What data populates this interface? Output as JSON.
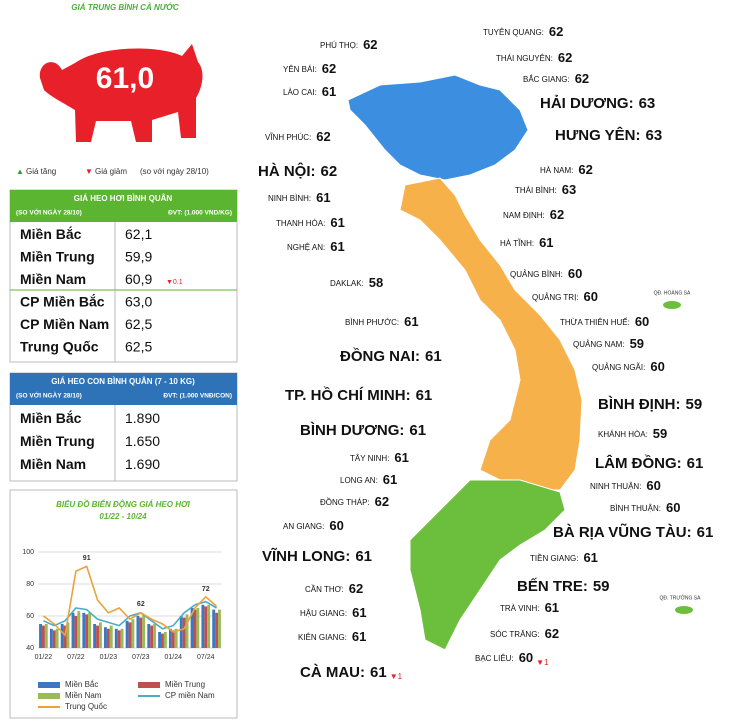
{
  "header": {
    "title": "GIÁ TRUNG BÌNH CẢ NƯỚC",
    "average": "61,0"
  },
  "legend": {
    "up": "Giá tăng",
    "down": "Giá giảm",
    "note": "(so với ngày 28/10)"
  },
  "live_table": {
    "title": "GIÁ HEO HƠI BÌNH QUÂN",
    "since": "(SO VỚI NGÀY 28/10)",
    "unit": "ĐVT: (1.000 VND/KG)",
    "rows": [
      [
        "Miền Bắc",
        "62,1"
      ],
      [
        "Miền Trung",
        "59,9"
      ],
      [
        "Miền Nam",
        "60,9",
        "▼0.1"
      ],
      [
        "CP Miền Bắc",
        "63,0"
      ],
      [
        "CP Miền Nam",
        "62,5"
      ],
      [
        "Trung Quốc",
        "62,5"
      ]
    ]
  },
  "piglet_table": {
    "title": "GIÁ HEO CON BÌNH QUÂN (7 - 10 KG)",
    "since": "(SO VỚI NGÀY 28/10)",
    "unit": "ĐVT: (1.000 VNĐ/CON)",
    "rows": [
      [
        "Miền Bắc",
        "1.890"
      ],
      [
        "Miền Trung",
        "1.650"
      ],
      [
        "Miền Nam",
        "1.690"
      ]
    ]
  },
  "chart_data": {
    "type": "bar-line",
    "title": "BIỂU ĐỒ BIẾN ĐỘNG GIÁ HEO HƠI",
    "subtitle": "01/22 - 10/24",
    "categories": [
      "01/22",
      null,
      null,
      "07/22",
      null,
      null,
      "01/23",
      null,
      null,
      "07/23",
      null,
      null,
      "01/24",
      null,
      null,
      "07/24",
      null
    ],
    "ylim": [
      40,
      100
    ],
    "yticks": [
      40,
      60,
      80,
      100
    ],
    "grid": true,
    "series": [
      {
        "name": "Miền Bắc",
        "color": "#3a78c3",
        "kind": "bar",
        "values": [
          55,
          52,
          55,
          62,
          62,
          55,
          53,
          52,
          57,
          60,
          55,
          50,
          52,
          60,
          65,
          67,
          64
        ]
      },
      {
        "name": "Miền Trung",
        "color": "#c0504d",
        "kind": "bar",
        "values": [
          54,
          51,
          54,
          60,
          61,
          54,
          52,
          51,
          56,
          59,
          54,
          49,
          51,
          59,
          64,
          66,
          62
        ]
      },
      {
        "name": "Miền Nam",
        "color": "#9bbb59",
        "kind": "bar",
        "values": [
          55,
          52,
          56,
          63,
          62,
          56,
          54,
          52,
          58,
          61,
          55,
          50,
          52,
          61,
          65,
          67,
          64
        ]
      },
      {
        "name": "CP miền Nam",
        "color": "#4bacc6",
        "kind": "line",
        "values": [
          57,
          54,
          57,
          65,
          64,
          58,
          56,
          54,
          60,
          62,
          57,
          52,
          54,
          62,
          67,
          69,
          65
        ]
      },
      {
        "name": "Trung Quốc",
        "color": "#e8a33d",
        "kind": "line",
        "values": [
          60,
          55,
          48,
          88,
          91,
          70,
          62,
          65,
          58,
          62,
          58,
          55,
          50,
          52,
          65,
          72,
          66
        ]
      }
    ],
    "annotations": [
      91,
      62,
      72
    ]
  },
  "map": {
    "provinces": [
      {
        "name": "PHÚ THỌ:",
        "value": 62
      },
      {
        "name": "YÊN BÁI:",
        "value": 62
      },
      {
        "name": "LÀO CAI:",
        "value": 61
      },
      {
        "name": "VĨNH PHÚC:",
        "value": 62
      },
      {
        "name": "HÀ NỘI:",
        "value": 62
      },
      {
        "name": "NINH BÌNH:",
        "value": 61
      },
      {
        "name": "THANH HÓA:",
        "value": 61
      },
      {
        "name": "NGHỆ AN:",
        "value": 61
      },
      {
        "name": "DAKLAK:",
        "value": 58
      },
      {
        "name": "BÌNH PHƯỚC:",
        "value": 61
      },
      {
        "name": "ĐỒNG NAI:",
        "value": 61
      },
      {
        "name": "TP. HỒ CHÍ MINH:",
        "value": 61
      },
      {
        "name": "BÌNH DƯƠNG:",
        "value": 61
      },
      {
        "name": "TÂY NINH:",
        "value": 61
      },
      {
        "name": "LONG AN:",
        "value": 61
      },
      {
        "name": "ĐỒNG THÁP:",
        "value": 62
      },
      {
        "name": "AN GIANG:",
        "value": 60
      },
      {
        "name": "VĨNH LONG:",
        "value": 61
      },
      {
        "name": "CẦN THƠ:",
        "value": 62
      },
      {
        "name": "HẬU GIANG:",
        "value": 61
      },
      {
        "name": "KIÊN GIANG:",
        "value": 61
      },
      {
        "name": "CÀ MAU:",
        "value": 61,
        "change": "▼1"
      },
      {
        "name": "TUYÊN QUANG:",
        "value": 62
      },
      {
        "name": "THÁI NGUYÊN:",
        "value": 62
      },
      {
        "name": "BẮC GIANG:",
        "value": 62
      },
      {
        "name": "HẢI DƯƠNG:",
        "value": 63
      },
      {
        "name": "HƯNG YÊN:",
        "value": 63
      },
      {
        "name": "HÀ NAM:",
        "value": 62
      },
      {
        "name": "THÁI BÌNH:",
        "value": 63
      },
      {
        "name": "NAM ĐỊNH:",
        "value": 62
      },
      {
        "name": "HÀ TĨNH:",
        "value": 61
      },
      {
        "name": "QUẢNG BÌNH:",
        "value": 60
      },
      {
        "name": "QUẢNG TRỊ:",
        "value": 60
      },
      {
        "name": "THỪA THIÊN HUẾ:",
        "value": 60
      },
      {
        "name": "QUẢNG NAM:",
        "value": 59
      },
      {
        "name": "QUẢNG NGÃI:",
        "value": 60
      },
      {
        "name": "BÌNH ĐỊNH:",
        "value": 59
      },
      {
        "name": "KHÁNH HÒA:",
        "value": 59
      },
      {
        "name": "LÂM ĐỒNG:",
        "value": 61
      },
      {
        "name": "NINH THUẬN:",
        "value": 60
      },
      {
        "name": "BÌNH THUẬN:",
        "value": 60
      },
      {
        "name": "BÀ RỊA VŨNG TÀU:",
        "value": 61
      },
      {
        "name": "TIỀN GIANG:",
        "value": 61
      },
      {
        "name": "BẾN TRE:",
        "value": 59
      },
      {
        "name": "TRÀ VINH:",
        "value": 61
      },
      {
        "name": "SÓC TRĂNG:",
        "value": 62
      },
      {
        "name": "BẠC LIÊU:",
        "value": 60,
        "change": "▼1"
      }
    ],
    "islands": [
      "QĐ. HOÀNG SA",
      "QĐ. TRƯỜNG SA"
    ]
  }
}
